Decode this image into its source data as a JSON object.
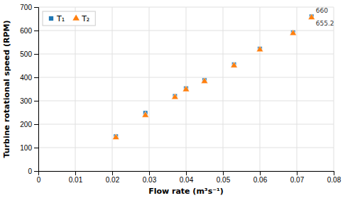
{
  "chart_data": {
    "type": "scatter",
    "xlabel": "Flow rate (m³s⁻¹)",
    "ylabel": "Turbine rotational speed (RPM)",
    "series": [
      {
        "name": "T₁",
        "marker": "square",
        "x": [
          0.021,
          0.029,
          0.037,
          0.04,
          0.045,
          0.053,
          0.06,
          0.069,
          0.074
        ],
        "values": [
          148,
          248,
          320,
          353,
          388,
          455,
          522,
          592,
          660
        ]
      },
      {
        "name": "T₂",
        "marker": "triangle",
        "x": [
          0.021,
          0.029,
          0.037,
          0.04,
          0.045,
          0.053,
          0.06,
          0.069,
          0.074
        ],
        "values": [
          143,
          238,
          315,
          348,
          383,
          450,
          518,
          588,
          655.2
        ]
      }
    ],
    "annotations": [
      {
        "text": "660",
        "x": 0.074,
        "y": 660
      },
      {
        "text": "655.2",
        "x": 0.074,
        "y": 655.2
      }
    ],
    "xlim": [
      0,
      0.08
    ],
    "ylim": [
      0,
      700
    ],
    "xticks": [
      0,
      0.01,
      0.02,
      0.03,
      0.04,
      0.05,
      0.06,
      0.07,
      0.08
    ],
    "yticks": [
      0,
      100,
      200,
      300,
      400,
      500,
      600,
      700
    ],
    "grid": true,
    "legend": "upper left"
  }
}
